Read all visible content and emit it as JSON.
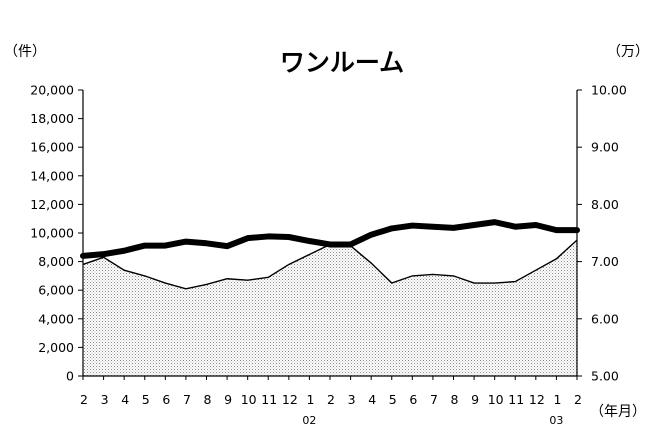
{
  "chart_data": {
    "type": "area+line",
    "title": "ワンルーム",
    "y_left_unit": "（件）",
    "y_right_unit": "（万）",
    "x_unit": "（年月）",
    "y_left_ticks": [
      "20,000",
      "18,000",
      "16,000",
      "14,000",
      "12,000",
      "10,000",
      "8,000",
      "6,000",
      "4,000",
      "2,000",
      "0"
    ],
    "y_right_ticks": [
      "10.00",
      "9.00",
      "8.00",
      "7.00",
      "6.00",
      "5.00"
    ],
    "ylim_left": [
      0,
      20000
    ],
    "ylim_right": [
      5,
      10
    ],
    "categories": [
      "2",
      "3",
      "4",
      "5",
      "6",
      "7",
      "8",
      "9",
      "10",
      "11",
      "12",
      "1",
      "2",
      "3",
      "4",
      "5",
      "6",
      "7",
      "8",
      "9",
      "10",
      "11",
      "12",
      "1",
      "2"
    ],
    "year_labels": [
      {
        "index": 11,
        "text": "02"
      },
      {
        "index": 23,
        "text": "03"
      }
    ],
    "series": [
      {
        "kind": "area",
        "axis": "left",
        "values": [
          7800,
          8300,
          7400,
          7000,
          6500,
          6100,
          6400,
          6800,
          6700,
          6900,
          7800,
          8500,
          9200,
          9100,
          7900,
          6500,
          7000,
          7100,
          7000,
          6500,
          6500,
          6600,
          7400,
          8200,
          9500
        ]
      },
      {
        "kind": "line",
        "axis": "right",
        "values": [
          7.1,
          7.13,
          7.19,
          7.28,
          7.28,
          7.35,
          7.32,
          7.27,
          7.41,
          7.44,
          7.43,
          7.36,
          7.3,
          7.3,
          7.47,
          7.58,
          7.63,
          7.61,
          7.59,
          7.64,
          7.69,
          7.61,
          7.64,
          7.55,
          7.55
        ]
      }
    ]
  }
}
